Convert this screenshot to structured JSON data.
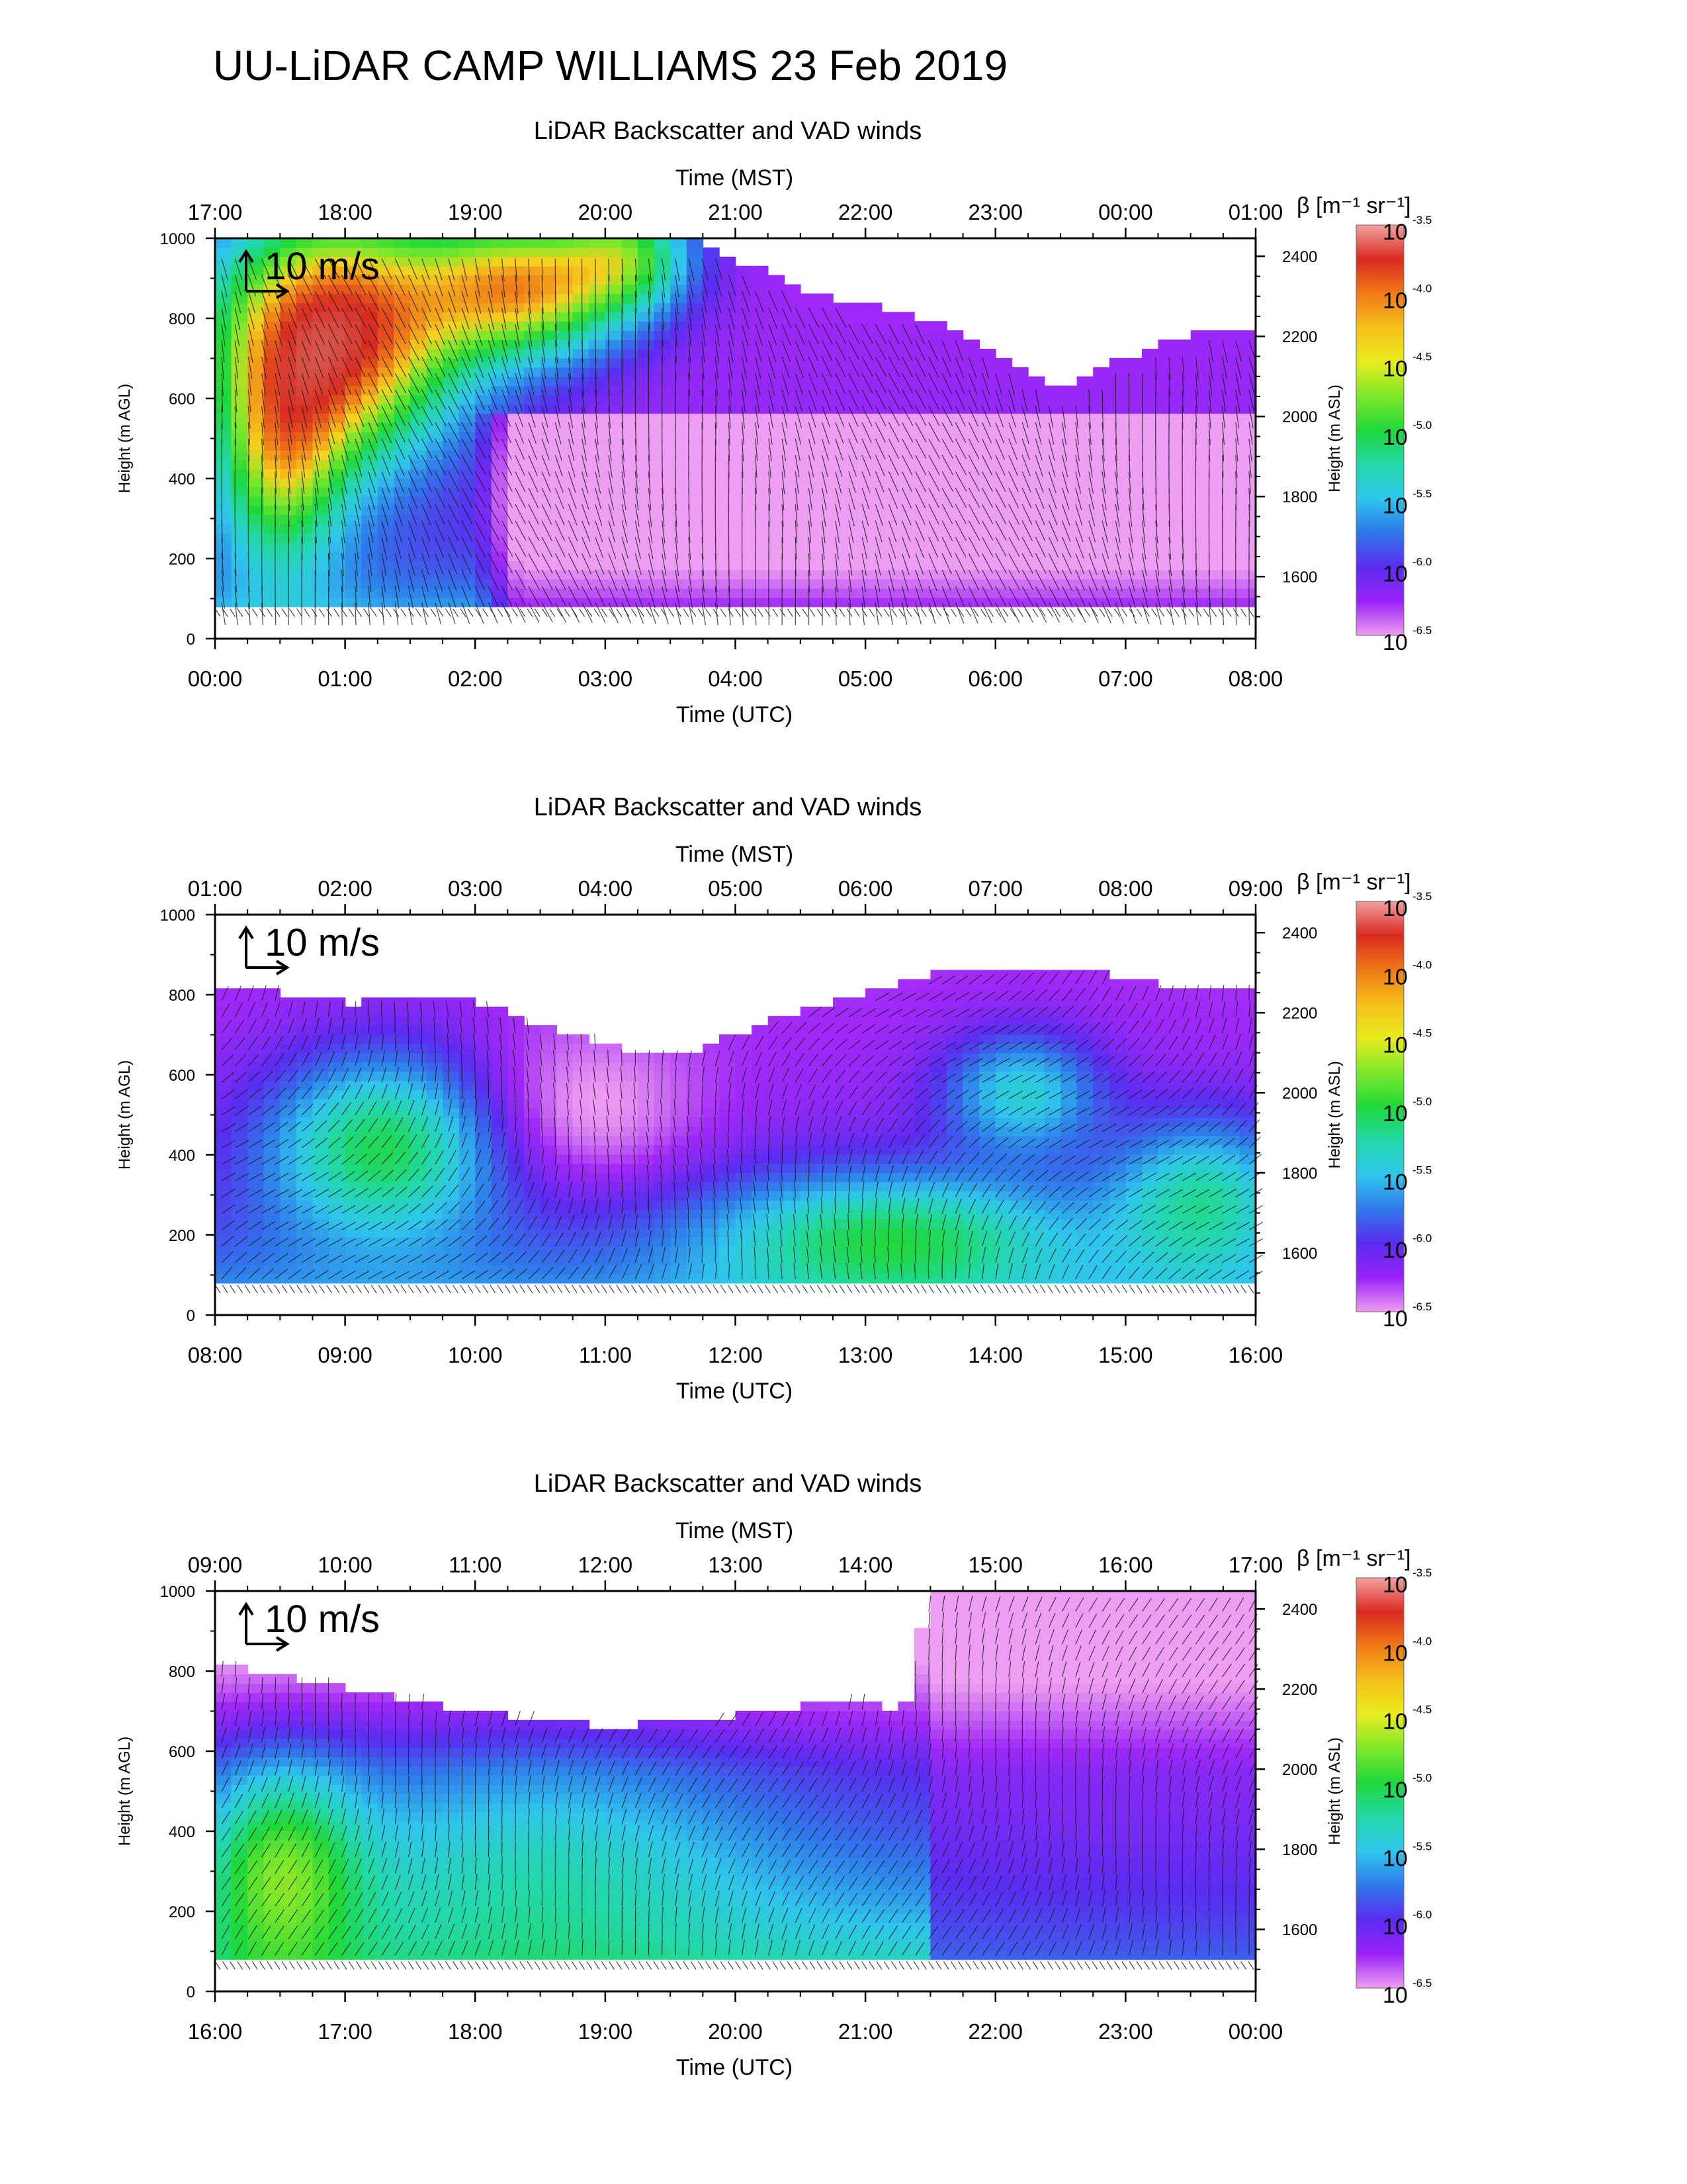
{
  "page": {
    "title": "UU-LiDAR CAMP WILLIAMS 23 Feb 2019"
  },
  "common": {
    "panel_title": "LiDAR Backscatter and VAD winds",
    "top_axis_label": "Time (MST)",
    "bottom_axis_label": "Time (UTC)",
    "left_axis_label": "Height (m AGL)",
    "right_axis_label": "Height (m ASL)",
    "colorbar_label": "β [m⁻¹ sr⁻¹]",
    "wind_scale_label": "10 m/s",
    "colorbar_ticks": [
      {
        "base": "10",
        "exp": "-3.5"
      },
      {
        "base": "10",
        "exp": "-4.0"
      },
      {
        "base": "10",
        "exp": "-4.5"
      },
      {
        "base": "10",
        "exp": "-5.0"
      },
      {
        "base": "10",
        "exp": "-5.5"
      },
      {
        "base": "10",
        "exp": "-6.0"
      },
      {
        "base": "10",
        "exp": "-6.5"
      }
    ],
    "colorbar_colors": [
      "#f2a0a0",
      "#d82a1f",
      "#f07a18",
      "#f5c01a",
      "#e8ec1e",
      "#7ee82a",
      "#1fd83a",
      "#22d8a8",
      "#2fc6ec",
      "#2f78ea",
      "#5a2cf0",
      "#9a22f8",
      "#ee9ef2"
    ],
    "left_ticks": [
      0,
      200,
      400,
      600,
      800,
      1000
    ],
    "right_ticks": [
      1600,
      1800,
      2000,
      2200,
      2400
    ],
    "ground_asl_m": 1445
  },
  "panels": [
    {
      "id": "panel-1",
      "top_labels": [
        "17:00",
        "18:00",
        "19:00",
        "20:00",
        "21:00",
        "22:00",
        "23:00",
        "00:00",
        "01:00"
      ],
      "bottom_labels": [
        "00:00",
        "01:00",
        "02:00",
        "03:00",
        "04:00",
        "05:00",
        "06:00",
        "07:00",
        "08:00"
      ]
    },
    {
      "id": "panel-2",
      "top_labels": [
        "01:00",
        "02:00",
        "03:00",
        "04:00",
        "05:00",
        "06:00",
        "07:00",
        "08:00",
        "09:00"
      ],
      "bottom_labels": [
        "08:00",
        "09:00",
        "10:00",
        "11:00",
        "12:00",
        "13:00",
        "14:00",
        "15:00",
        "16:00"
      ]
    },
    {
      "id": "panel-3",
      "top_labels": [
        "09:00",
        "10:00",
        "11:00",
        "12:00",
        "13:00",
        "14:00",
        "15:00",
        "16:00",
        "17:00"
      ],
      "bottom_labels": [
        "16:00",
        "17:00",
        "18:00",
        "19:00",
        "20:00",
        "21:00",
        "22:00",
        "23:00",
        "00:00"
      ]
    }
  ],
  "chart_data": [
    {
      "type": "heatmap",
      "title": "LiDAR Backscatter and VAD winds",
      "xlabel": "Time (UTC)",
      "x2label": "Time (MST)",
      "ylabel": "Height (m AGL)",
      "y2label": "Height (m ASL)",
      "xlim": [
        "00:00",
        "08:00"
      ],
      "ylim": [
        0,
        1000
      ],
      "colorbar": {
        "label": "β [m⁻¹ sr⁻¹]",
        "scale": "log",
        "range": [
          -6.5,
          -3.5
        ]
      },
      "approx_top_of_signal_m_AGL": [
        [
          0.0,
          1000
        ],
        [
          3.7,
          1000
        ],
        [
          4.5,
          870
        ],
        [
          5.5,
          800
        ],
        [
          6.5,
          620
        ],
        [
          7.0,
          700
        ],
        [
          7.5,
          760
        ],
        [
          8.0,
          780
        ]
      ],
      "approx_log10_beta_regions": [
        {
          "time_utc": "00:00-02:00",
          "height_m": "100-1000",
          "log10_beta": -4.0
        },
        {
          "time_utc": "02:00-03:30",
          "height_m": "600-1000",
          "log10_beta": -4.5
        },
        {
          "time_utc": "02:00-08:00",
          "height_m": "80-600",
          "log10_beta": -6.2
        }
      ]
    },
    {
      "type": "heatmap",
      "title": "LiDAR Backscatter and VAD winds",
      "xlabel": "Time (UTC)",
      "x2label": "Time (MST)",
      "ylabel": "Height (m AGL)",
      "y2label": "Height (m ASL)",
      "xlim": [
        "08:00",
        "16:00"
      ],
      "ylim": [
        0,
        1000
      ],
      "colorbar": {
        "label": "β [m⁻¹ sr⁻¹]",
        "scale": "log",
        "range": [
          -6.5,
          -3.5
        ]
      },
      "approx_top_of_signal_m_AGL": [
        [
          0.0,
          830
        ],
        [
          1.0,
          780
        ],
        [
          2.0,
          790
        ],
        [
          2.5,
          720
        ],
        [
          3.5,
          640
        ],
        [
          4.5,
          760
        ],
        [
          5.5,
          850
        ],
        [
          6.5,
          870
        ],
        [
          7.5,
          810
        ],
        [
          8.0,
          820
        ]
      ],
      "approx_log10_beta_regions": [
        {
          "time_utc": "08:30-10:00",
          "height_m": "100-650",
          "log10_beta": -5.5
        },
        {
          "time_utc": "12:30-14:00",
          "height_m": "100-300",
          "log10_beta": -5.3
        },
        {
          "time_utc": "10:00-12:00",
          "height_m": "300-650",
          "log10_beta": -6.0
        }
      ]
    },
    {
      "type": "heatmap",
      "title": "LiDAR Backscatter and VAD winds",
      "xlabel": "Time (UTC)",
      "x2label": "Time (MST)",
      "ylabel": "Height (m AGL)",
      "y2label": "Height (m ASL)",
      "xlim": [
        "16:00",
        "00:00"
      ],
      "ylim": [
        0,
        1000
      ],
      "colorbar": {
        "label": "β [m⁻¹ sr⁻¹]",
        "scale": "log",
        "range": [
          -6.5,
          -3.5
        ]
      },
      "approx_top_of_signal_m_AGL": [
        [
          0.0,
          820
        ],
        [
          1.0,
          760
        ],
        [
          2.0,
          700
        ],
        [
          3.0,
          660
        ],
        [
          4.0,
          690
        ],
        [
          5.0,
          730
        ],
        [
          5.3,
          700
        ],
        [
          5.5,
          1000
        ],
        [
          8.0,
          1000
        ]
      ],
      "approx_log10_beta_regions": [
        {
          "time_utc": "16:00-17:00",
          "height_m": "100-600",
          "log10_beta": -5.3
        },
        {
          "time_utc": "17:00-21:00",
          "height_m": "100-600",
          "log10_beta": -5.8
        },
        {
          "time_utc": "21:00-00:00",
          "height_m": "100-600",
          "log10_beta": -6.2
        }
      ]
    }
  ]
}
